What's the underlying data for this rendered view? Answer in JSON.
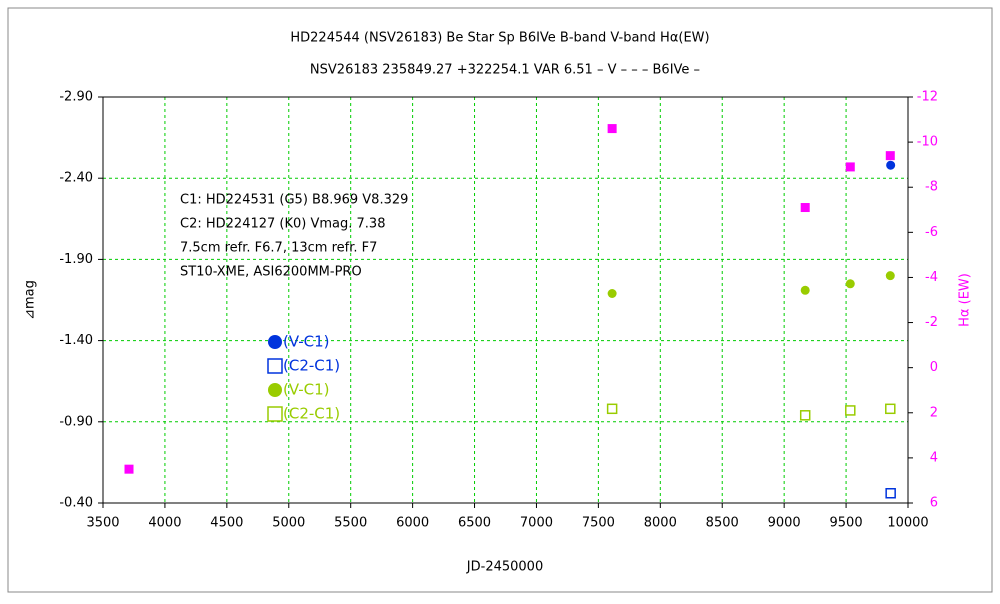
{
  "chart_data": {
    "type": "scatter",
    "title": "HD224544 (NSV26183)    Be Star    Sp B6IVe    B-band    V-band    Hα(EW)",
    "subtitle": "NSV26183 235849.27 +322254.1 VAR 6.51 – V – – – B6IVe –",
    "x_label": "JD-2450000",
    "y_label": "⊿mag",
    "y2_label": "Hα (EW)",
    "annotations": [
      "C1: HD224531 (G5)  B8.969  V8.329",
      "C2: HD224127 (K0) Vmag. 7.38",
      "7.5cm refr. F6.7,  13cm refr. F7",
      "ST10-XME,  ASI6200MM-PRO"
    ],
    "xlim": [
      3500,
      10000
    ],
    "xticks": [
      3500,
      4000,
      4500,
      5000,
      5500,
      6000,
      6500,
      7000,
      7500,
      8000,
      8500,
      9000,
      9500,
      10000
    ],
    "ylim": [
      -2.9,
      -0.4
    ],
    "yticks": [
      {
        "value": -2.9,
        "label": "-2.90"
      },
      {
        "value": -2.4,
        "label": "-2.40"
      },
      {
        "value": -1.9,
        "label": "-1.90"
      },
      {
        "value": -1.4,
        "label": "-1.40"
      },
      {
        "value": -0.9,
        "label": "-0.90"
      },
      {
        "value": -0.4,
        "label": "-0.40"
      }
    ],
    "y2lim": [
      -12,
      6
    ],
    "y2ticks": [
      -12,
      -10,
      -8,
      -6,
      -4,
      -2,
      0,
      2,
      4,
      6
    ],
    "grid": true,
    "series": [
      {
        "name": "(V-C1)",
        "color": "#0033dd",
        "marker": "circle",
        "x": [
          9860
        ],
        "values": [
          -2.48
        ]
      },
      {
        "name": "(C2-C1)",
        "color": "#0033dd",
        "marker": "open-square",
        "x": [
          9860
        ],
        "values": [
          -0.46
        ]
      },
      {
        "name": "(V-C1)",
        "color": "#99cc00",
        "marker": "circle",
        "x": [
          7611,
          9170,
          9534,
          9857
        ],
        "values": [
          -1.69,
          -1.71,
          -1.75,
          -1.8
        ]
      },
      {
        "name": "(C2-C1)",
        "color": "#99cc00",
        "marker": "open-square",
        "x": [
          7611,
          9170,
          9534,
          9857
        ],
        "values": [
          -0.98,
          -0.94,
          -0.97,
          -0.98
        ]
      },
      {
        "color": "#ff00ff",
        "marker": "square",
        "axis": "y2",
        "x": [
          3710,
          7611,
          9170,
          9534,
          9857
        ],
        "values": [
          4.5,
          -10.6,
          -7.1,
          -8.9,
          -9.4
        ]
      }
    ]
  }
}
